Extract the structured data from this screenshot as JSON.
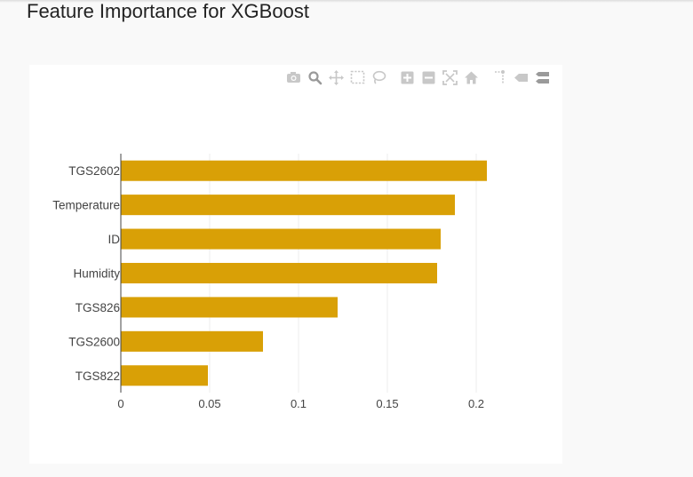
{
  "page": {
    "title": "Feature Importance for XGBoost"
  },
  "modebar": {
    "buttons": [
      {
        "name": "camera-icon",
        "color": "#c8c8c8"
      },
      {
        "name": "zoom-icon",
        "color": "#9a9a9a"
      },
      {
        "name": "pan-icon",
        "color": "#c8c8c8"
      },
      {
        "name": "box-select-icon",
        "color": "#c8c8c8"
      },
      {
        "name": "lasso-select-icon",
        "color": "#c8c8c8"
      },
      {
        "name": "zoom-in-icon",
        "color": "#c8c8c8"
      },
      {
        "name": "zoom-out-icon",
        "color": "#c8c8c8"
      },
      {
        "name": "autoscale-icon",
        "color": "#c8c8c8"
      },
      {
        "name": "reset-axes-icon",
        "color": "#c8c8c8"
      },
      {
        "name": "spike-lines-icon",
        "color": "#c8c8c8"
      },
      {
        "name": "hover-closest-icon",
        "color": "#c8c8c8"
      },
      {
        "name": "hover-compare-icon",
        "color": "#9a9a9a"
      }
    ]
  },
  "chart_data": {
    "type": "bar",
    "orientation": "horizontal",
    "title": "",
    "xlabel": "",
    "ylabel": "",
    "categories": [
      "TGS822",
      "TGS2600",
      "TGS826",
      "Humidity",
      "ID",
      "Temperature",
      "TGS2602"
    ],
    "values": [
      0.049,
      0.08,
      0.122,
      0.178,
      0.18,
      0.188,
      0.206
    ],
    "xlim": [
      0,
      0.2435
    ],
    "xticks": [
      0,
      0.05,
      0.1,
      0.15,
      0.2
    ],
    "xtick_labels": [
      "0",
      "0.05",
      "0.1",
      "0.15",
      "0.2"
    ],
    "grid": true,
    "bar_color": "#d9a006",
    "grid_color": "#eeeeee",
    "axis_color": "#444444"
  }
}
